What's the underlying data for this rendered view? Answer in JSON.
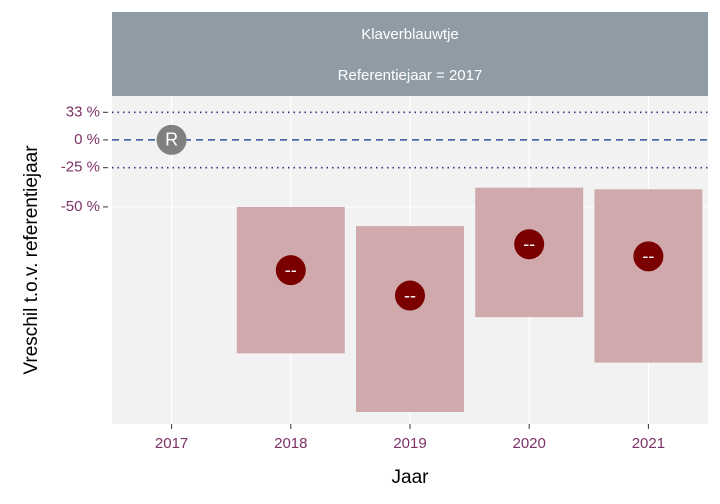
{
  "chart_data": {
    "type": "interval-point",
    "strip": [
      "Klaverblauwtje",
      "Referentiejaar = 2017"
    ],
    "x_label": "Jaar",
    "y_label": "Vreschil t.o.v. referentiejaar",
    "categories": [
      "2017",
      "2018",
      "2019",
      "2020",
      "2021"
    ],
    "values": [
      0,
      -74,
      -80,
      -66,
      -70
    ],
    "lower": [
      null,
      -89,
      -94,
      -84,
      -90
    ],
    "upper": [
      null,
      -50,
      -59,
      -39,
      -40
    ],
    "point_labels": [
      "R",
      "--",
      "--",
      "--",
      "--"
    ],
    "point_colors": [
      "#808080",
      "#7a0000",
      "#7a0000",
      "#7a0000",
      "#7a0000"
    ],
    "interval_color": "#cfa9ab",
    "ylog": true,
    "ylim": [
      -94.7,
      57.4
    ],
    "yticks": [
      {
        "value": 33,
        "label": "33 %"
      },
      {
        "value": 0,
        "label": "0 %"
      },
      {
        "value": -25,
        "label": "-25 %"
      },
      {
        "value": -50,
        "label": "-50 %"
      }
    ],
    "tick_line_styles": [
      "dotted",
      "dashed",
      "dotted",
      "solid"
    ],
    "grid": true
  }
}
